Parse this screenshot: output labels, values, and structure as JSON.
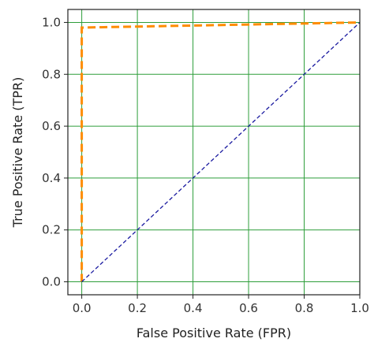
{
  "chart_data": {
    "type": "line",
    "title": "",
    "xlabel": "False Positive Rate (FPR)",
    "ylabel": "True Positive Rate (TPR)",
    "xlim": [
      -0.05,
      1.0
    ],
    "ylim": [
      -0.05,
      1.05
    ],
    "x_ticks": [
      0.0,
      0.2,
      0.4,
      0.6,
      0.8,
      1.0
    ],
    "y_ticks": [
      0.0,
      0.2,
      0.4,
      0.6,
      0.8,
      1.0
    ],
    "x_tick_labels": [
      "0.0",
      "0.2",
      "0.4",
      "0.6",
      "0.8",
      "1.0"
    ],
    "y_tick_labels": [
      "0.0",
      "0.2",
      "0.4",
      "0.6",
      "0.8",
      "1.0"
    ],
    "grid": true,
    "grid_color": "#2e9e3a",
    "legend": "none",
    "series": [
      {
        "style": "dashed",
        "color": "#ff8c00",
        "x": [
          0.0,
          0.0,
          0.0,
          1.0
        ],
        "y": [
          0.0,
          0.0,
          0.98,
          1.0
        ]
      },
      {
        "style": "dashed",
        "color": "#1a1aa0",
        "x": [
          0.0,
          1.0
        ],
        "y": [
          0.0,
          1.0
        ]
      }
    ]
  }
}
